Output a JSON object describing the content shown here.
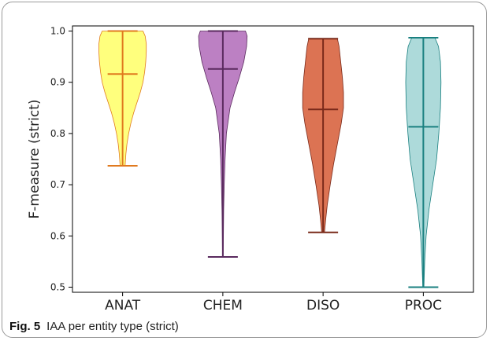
{
  "caption": {
    "label": "Fig. 5",
    "text": "IAA per entity type (strict)"
  },
  "chart_data": {
    "type": "violin",
    "title": "",
    "xlabel": "",
    "ylabel": "F-measure (strict)",
    "ylim": [
      0.49,
      1.01
    ],
    "yticks": [
      0.5,
      0.6,
      0.7,
      0.8,
      0.9,
      1.0
    ],
    "ytick_labels": [
      "0.5",
      "0.6",
      "0.7",
      "0.8",
      "0.9",
      "1.0"
    ],
    "grid": false,
    "categories": [
      "ANAT",
      "CHEM",
      "DISO",
      "PROC"
    ],
    "series": [
      {
        "category": "ANAT",
        "fill": "#ffff66",
        "line": "#e07a1f",
        "min": 0.737,
        "max": 1.0,
        "mean": 0.916,
        "density": [
          [
            0.737,
            0.09
          ],
          [
            0.76,
            0.12
          ],
          [
            0.78,
            0.16
          ],
          [
            0.8,
            0.22
          ],
          [
            0.82,
            0.3
          ],
          [
            0.84,
            0.4
          ],
          [
            0.86,
            0.52
          ],
          [
            0.88,
            0.64
          ],
          [
            0.9,
            0.74
          ],
          [
            0.92,
            0.8
          ],
          [
            0.94,
            0.84
          ],
          [
            0.96,
            0.86
          ],
          [
            0.975,
            0.86
          ],
          [
            0.99,
            0.82
          ],
          [
            1.0,
            0.74
          ]
        ]
      },
      {
        "category": "CHEM",
        "fill": "#b06ab8",
        "line": "#5a2a5e",
        "min": 0.559,
        "max": 1.0,
        "mean": 0.926,
        "density": [
          [
            0.559,
            0.01
          ],
          [
            0.6,
            0.02
          ],
          [
            0.65,
            0.03
          ],
          [
            0.7,
            0.05
          ],
          [
            0.75,
            0.08
          ],
          [
            0.8,
            0.13
          ],
          [
            0.85,
            0.26
          ],
          [
            0.88,
            0.42
          ],
          [
            0.91,
            0.6
          ],
          [
            0.94,
            0.76
          ],
          [
            0.97,
            0.86
          ],
          [
            0.99,
            0.88
          ],
          [
            1.0,
            0.82
          ]
        ]
      },
      {
        "category": "DISO",
        "fill": "#d65a35",
        "line": "#7a2a1a",
        "min": 0.607,
        "max": 0.985,
        "mean": 0.847,
        "density": [
          [
            0.607,
            0.05
          ],
          [
            0.63,
            0.09
          ],
          [
            0.66,
            0.15
          ],
          [
            0.7,
            0.26
          ],
          [
            0.74,
            0.38
          ],
          [
            0.78,
            0.52
          ],
          [
            0.82,
            0.66
          ],
          [
            0.85,
            0.74
          ],
          [
            0.88,
            0.74
          ],
          [
            0.91,
            0.7
          ],
          [
            0.94,
            0.64
          ],
          [
            0.97,
            0.58
          ],
          [
            0.985,
            0.52
          ]
        ]
      },
      {
        "category": "PROC",
        "fill": "#9fd3d3",
        "line": "#1a8080",
        "min": 0.5,
        "max": 0.987,
        "mean": 0.813,
        "density": [
          [
            0.5,
            0.02
          ],
          [
            0.55,
            0.05
          ],
          [
            0.6,
            0.1
          ],
          [
            0.65,
            0.2
          ],
          [
            0.7,
            0.34
          ],
          [
            0.75,
            0.48
          ],
          [
            0.8,
            0.56
          ],
          [
            0.85,
            0.62
          ],
          [
            0.9,
            0.64
          ],
          [
            0.94,
            0.62
          ],
          [
            0.97,
            0.55
          ],
          [
            0.987,
            0.42
          ]
        ]
      }
    ]
  }
}
